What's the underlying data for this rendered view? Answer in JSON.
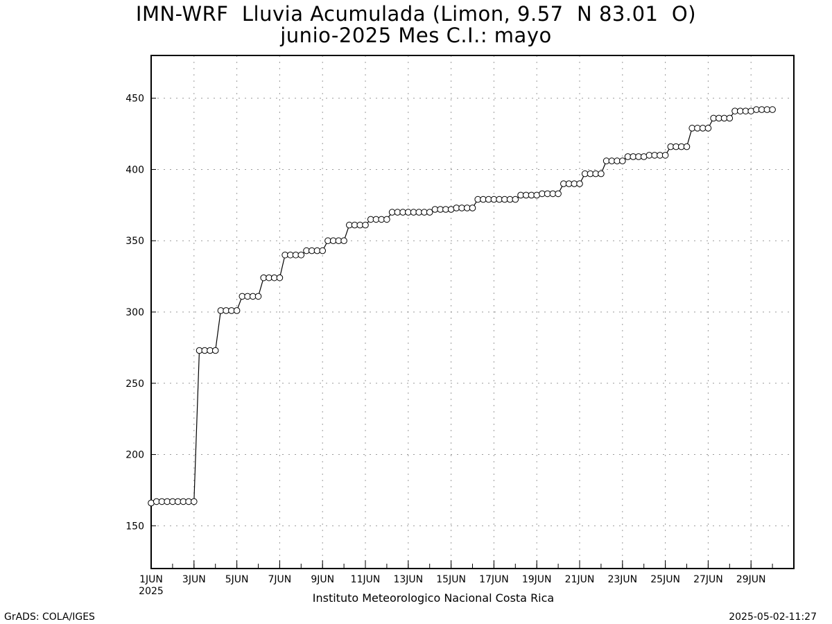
{
  "header": {
    "title_line1": "IMN-WRF  Lluvia Acumulada (Limon, 9.57  N 83.01  O)",
    "title_line2": "junio-2025 Mes C.I.: mayo"
  },
  "footer": {
    "credit": "GrADS: COLA/IGES",
    "institute": "Instituto Meteorologico Nacional Costa Rica",
    "timestamp": "2025-05-02-11:27"
  },
  "chart_data": {
    "type": "line",
    "title": "IMN-WRF  Lluvia Acumulada (Limon, 9.57  N 83.01  O)",
    "subtitle": "junio-2025 Mes C.I.: mayo",
    "xlabel": "",
    "ylabel": "",
    "x_unit": "day of June 2025 (fractional, 1.0 = 1JUN 00Z)",
    "xlim": [
      1,
      31
    ],
    "ylim": [
      120,
      480
    ],
    "y_ticks": [
      150,
      200,
      250,
      300,
      350,
      400,
      450
    ],
    "x_ticks": [
      {
        "x": 1,
        "label": "1JUN",
        "sublabel": "2025"
      },
      {
        "x": 3,
        "label": "3JUN"
      },
      {
        "x": 5,
        "label": "5JUN"
      },
      {
        "x": 7,
        "label": "7JUN"
      },
      {
        "x": 9,
        "label": "9JUN"
      },
      {
        "x": 11,
        "label": "11JUN"
      },
      {
        "x": 13,
        "label": "13JUN"
      },
      {
        "x": 15,
        "label": "15JUN"
      },
      {
        "x": 17,
        "label": "17JUN"
      },
      {
        "x": 19,
        "label": "19JUN"
      },
      {
        "x": 21,
        "label": "21JUN"
      },
      {
        "x": 23,
        "label": "23JUN"
      },
      {
        "x": 25,
        "label": "25JUN"
      },
      {
        "x": 27,
        "label": "27JUN"
      },
      {
        "x": 29,
        "label": "29JUN"
      }
    ],
    "grid": true,
    "marker": "open-circle",
    "series": [
      {
        "color": "#000000",
        "x": [
          1.0,
          1.25,
          1.5,
          1.75,
          2.0,
          2.25,
          2.5,
          2.75,
          3.0,
          3.25,
          3.5,
          3.75,
          4.0,
          4.25,
          4.5,
          4.75,
          5.0,
          5.25,
          5.5,
          5.75,
          6.0,
          6.25,
          6.5,
          6.75,
          7.0,
          7.25,
          7.5,
          7.75,
          8.0,
          8.25,
          8.5,
          8.75,
          9.0,
          9.25,
          9.5,
          9.75,
          10.0,
          10.25,
          10.5,
          10.75,
          11.0,
          11.25,
          11.5,
          11.75,
          12.0,
          12.25,
          12.5,
          12.75,
          13.0,
          13.25,
          13.5,
          13.75,
          14.0,
          14.25,
          14.5,
          14.75,
          15.0,
          15.25,
          15.5,
          15.75,
          16.0,
          16.25,
          16.5,
          16.75,
          17.0,
          17.25,
          17.5,
          17.75,
          18.0,
          18.25,
          18.5,
          18.75,
          19.0,
          19.25,
          19.5,
          19.75,
          20.0,
          20.25,
          20.5,
          20.75,
          21.0,
          21.25,
          21.5,
          21.75,
          22.0,
          22.25,
          22.5,
          22.75,
          23.0,
          23.25,
          23.5,
          23.75,
          24.0,
          24.25,
          24.5,
          24.75,
          25.0,
          25.25,
          25.5,
          25.75,
          26.0,
          26.25,
          26.5,
          26.75,
          27.0,
          27.25,
          27.5,
          27.75,
          28.0,
          28.25,
          28.5,
          28.75,
          29.0,
          29.25,
          29.5,
          29.75,
          30.0
        ],
        "values": [
          166,
          167,
          167,
          167,
          167,
          167,
          167,
          167,
          167,
          273,
          273,
          273,
          273,
          301,
          301,
          301,
          301,
          311,
          311,
          311,
          311,
          324,
          324,
          324,
          324,
          340,
          340,
          340,
          340,
          343,
          343,
          343,
          343,
          350,
          350,
          350,
          350,
          361,
          361,
          361,
          361,
          365,
          365,
          365,
          365,
          370,
          370,
          370,
          370,
          370,
          370,
          370,
          370,
          372,
          372,
          372,
          372,
          373,
          373,
          373,
          373,
          379,
          379,
          379,
          379,
          379,
          379,
          379,
          379,
          382,
          382,
          382,
          382,
          383,
          383,
          383,
          383,
          390,
          390,
          390,
          390,
          397,
          397,
          397,
          397,
          406,
          406,
          406,
          406,
          409,
          409,
          409,
          409,
          410,
          410,
          410,
          410,
          416,
          416,
          416,
          416,
          429,
          429,
          429,
          429,
          436,
          436,
          436,
          436,
          441,
          441,
          441,
          441,
          442,
          442,
          442,
          442
        ]
      }
    ]
  }
}
